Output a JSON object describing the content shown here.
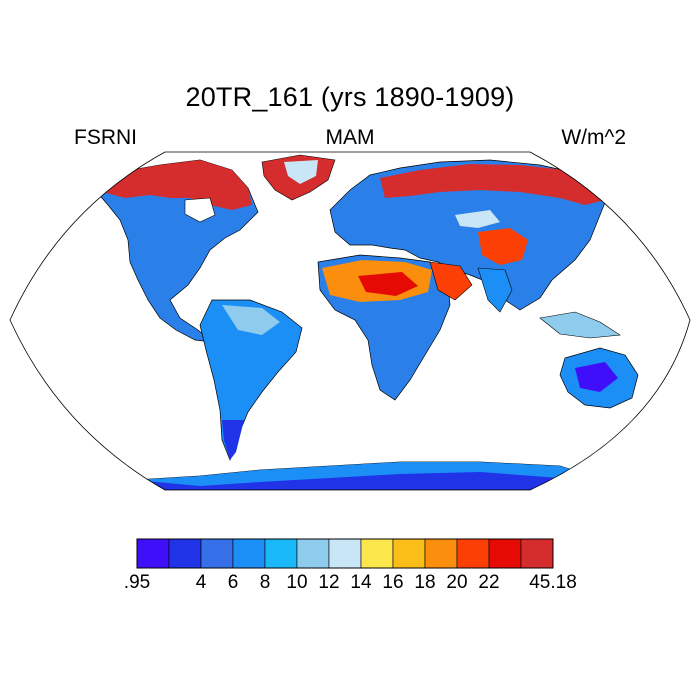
{
  "title": "20TR_161 (yrs 1890-1909)",
  "left_label": "FSRNI",
  "center_label": "MAM",
  "right_label": "W/m^2",
  "colorbar": {
    "colors": [
      "#3f0ffa",
      "#2033e6",
      "#3570e8",
      "#1c8ff7",
      "#19b9f9",
      "#8ecbec",
      "#c8e6f6",
      "#fbe64b",
      "#fbbd18",
      "#fb8e0c",
      "#fb3f05",
      "#e60a04",
      "#d52d2d"
    ],
    "labels": [
      ".95",
      "4",
      "6",
      "8",
      "10",
      "12",
      "14",
      "16",
      "18",
      "20",
      "22",
      "45.18"
    ]
  }
}
